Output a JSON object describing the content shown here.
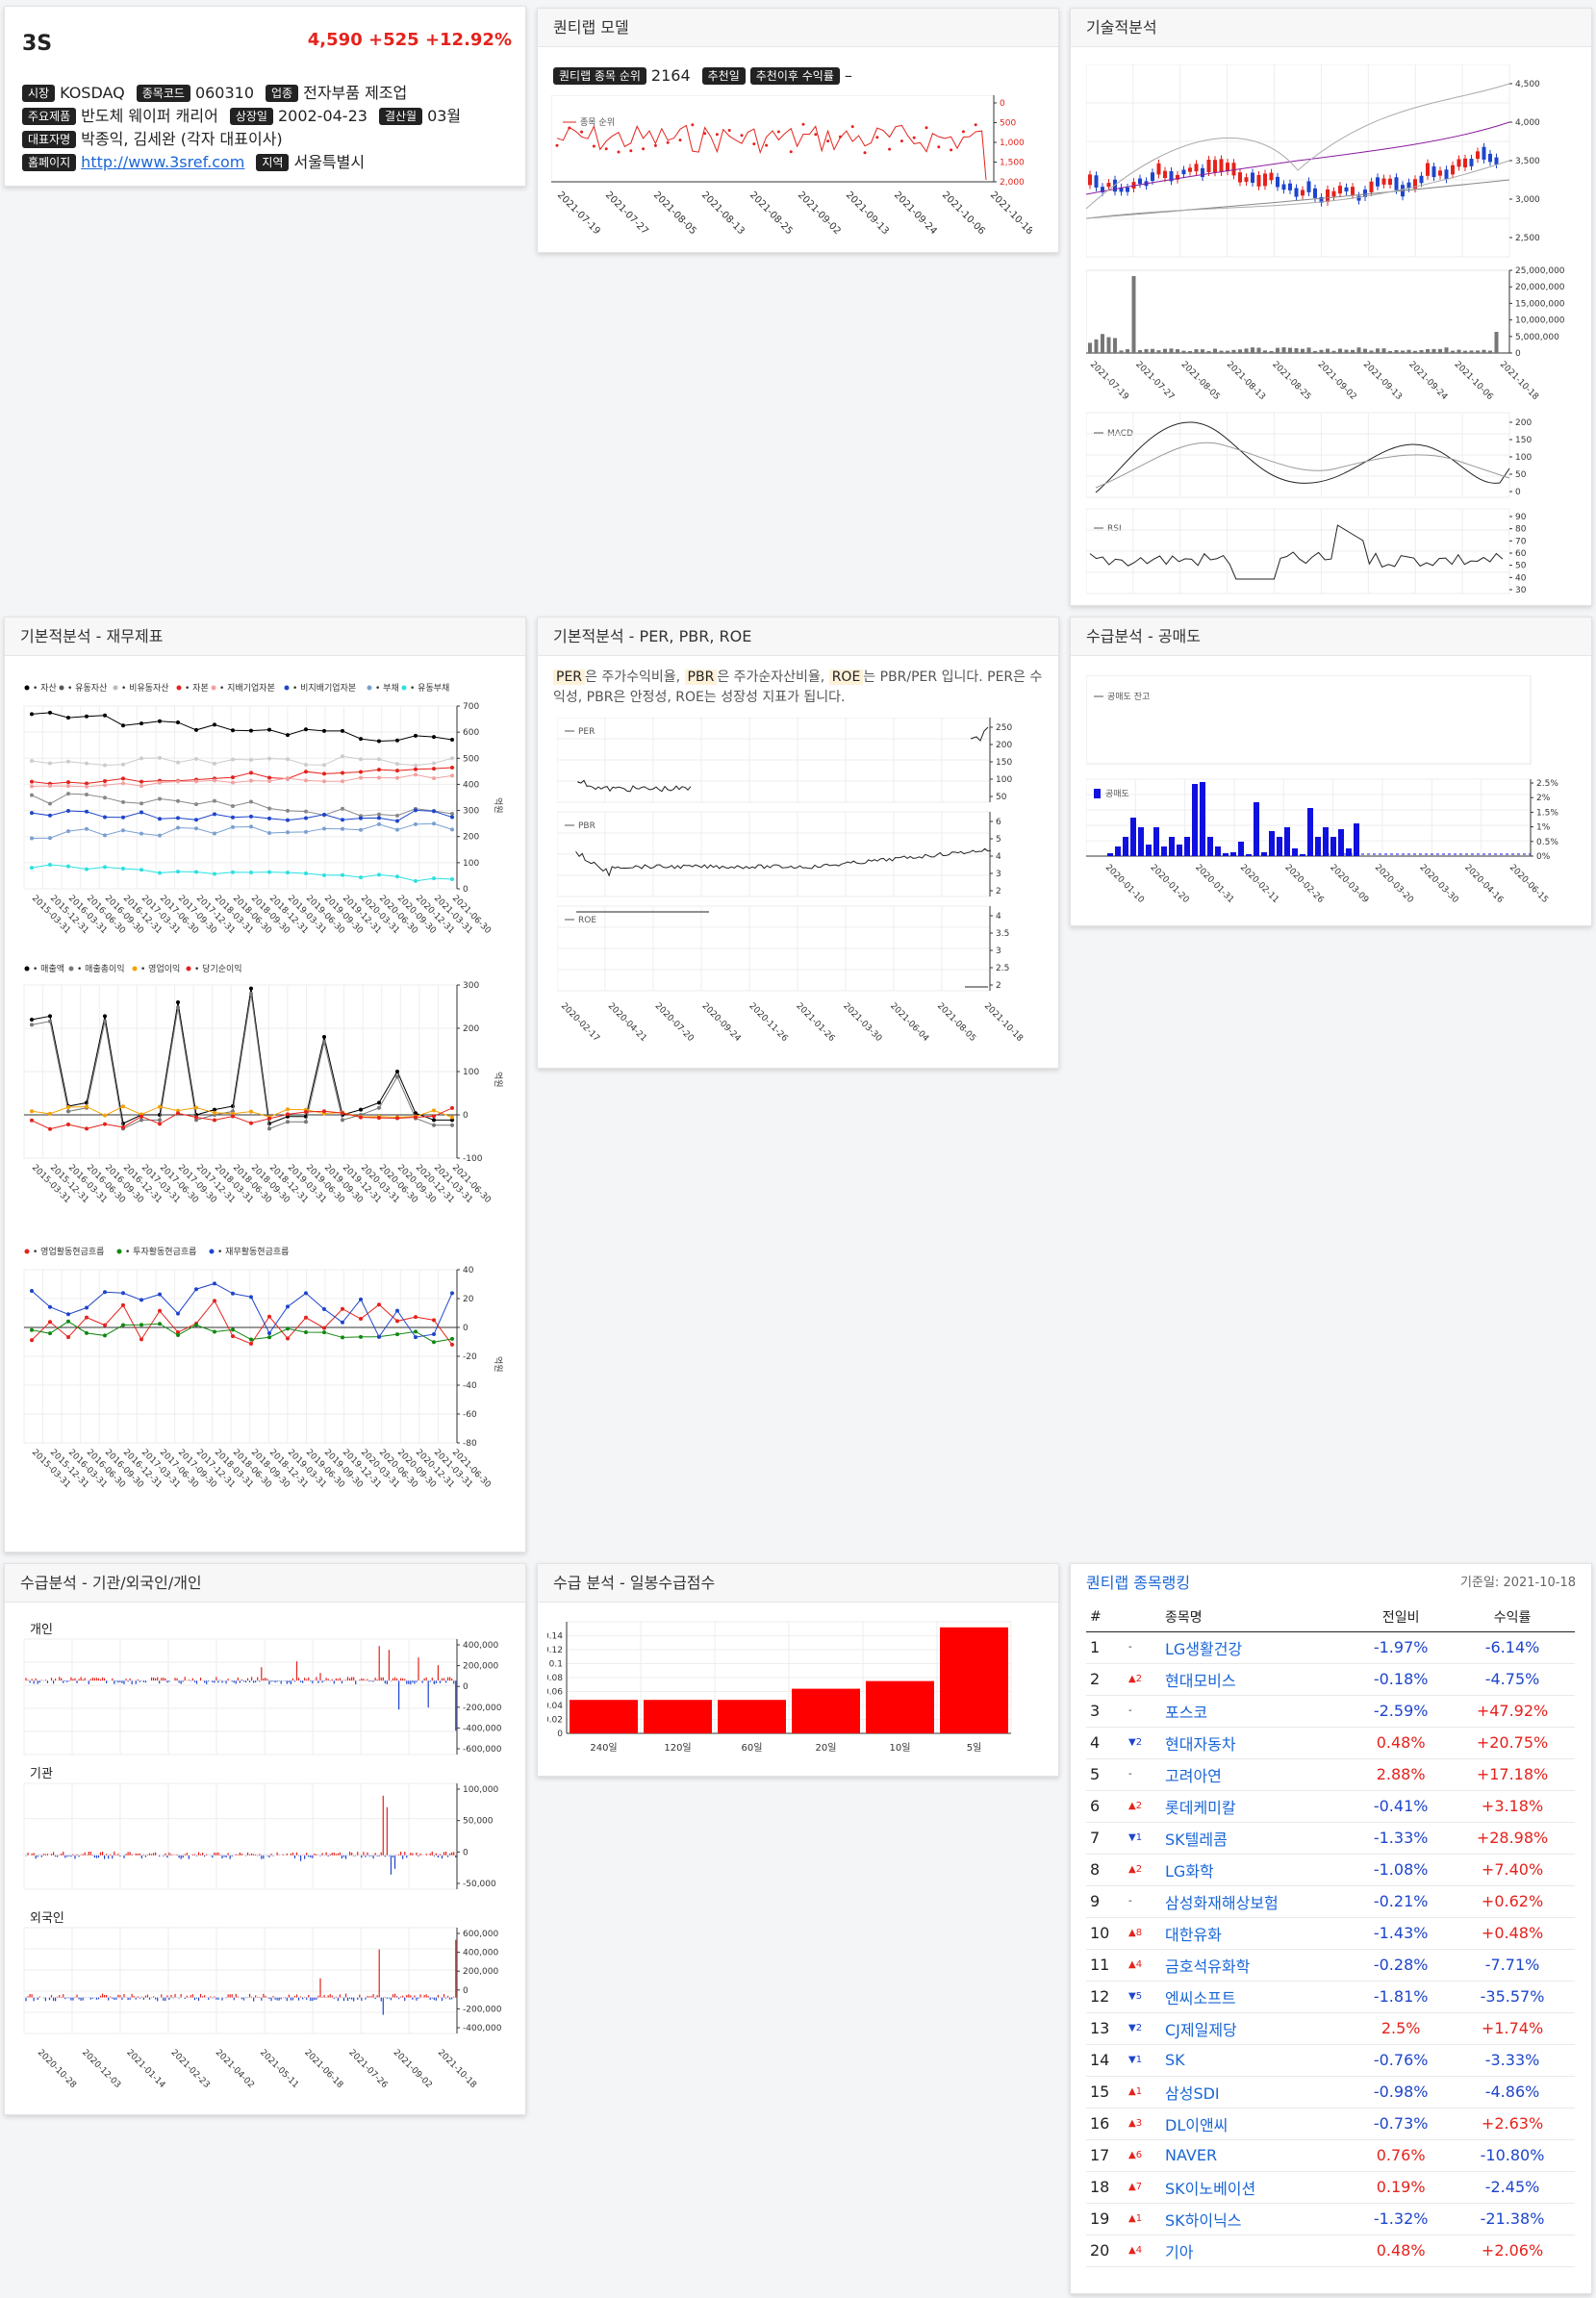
{
  "stock": {
    "name": "3S",
    "price": "4,590",
    "change": "+525",
    "pct": "+12.92%",
    "market_label": "시장",
    "market": "KOSDAQ",
    "code_label": "종목코드",
    "code": "060310",
    "industry_label": "업종",
    "industry": "전자부품 제조업",
    "products_label": "주요제품",
    "products": "반도체 웨이퍼 캐리어",
    "listed_label": "상장일",
    "listed": "2002-04-23",
    "fiscal_label": "결산월",
    "fiscal": "03월",
    "ceo_label": "대표자명",
    "ceo": "박종익, 김세완 (각자 대표이사)",
    "home_label": "홈페이지",
    "home": "http://www.3sref.com",
    "region_label": "지역",
    "region": "서울특별시"
  },
  "quantlab": {
    "title": "퀀티랩 모델",
    "rank_label": "퀀티랩 종목 순위",
    "rank": "2164",
    "recdate_label": "추천일",
    "return_label": "추천이후 수익률",
    "return_value": "–",
    "legend": "종목 순위",
    "y_ticks": [
      "0",
      "500",
      "1,000",
      "1,500",
      "2,000"
    ],
    "x_ticks": [
      "2021-07-19",
      "2021-07-27",
      "2021-08-05",
      "2021-08-13",
      "2021-08-25",
      "2021-09-02",
      "2021-09-13",
      "2021-09-24",
      "2021-10-06",
      "2021-10-18"
    ]
  },
  "technical": {
    "title": "기술적분석",
    "price_ticks": [
      "4,500",
      "4,000",
      "3,500",
      "3,000",
      "2,500"
    ],
    "volume_ticks": [
      "25,000,000",
      "20,000,000",
      "15,000,000",
      "10,000,000",
      "5,000,000",
      "0"
    ],
    "x_ticks": [
      "2021-07-19",
      "2021-07-27",
      "2021-08-05",
      "2021-08-13",
      "2021-08-25",
      "2021-09-02",
      "2021-09-13",
      "2021-09-24",
      "2021-10-06",
      "2021-10-18"
    ],
    "macd_legend": "MACD",
    "macd_ticks": [
      "200",
      "150",
      "100",
      "50",
      "0"
    ],
    "rsi_legend": "RSI",
    "rsi_ticks": [
      "90",
      "80",
      "70",
      "60",
      "50",
      "40",
      "30"
    ]
  },
  "fundamental": {
    "title": "기본적분석 - 재무제표",
    "unit": "억원",
    "chart1_legend": [
      "자산",
      "유동자산",
      "비유동자산",
      "자본",
      "지배기업자본",
      "비지배기업자본",
      "부채",
      "유동부채"
    ],
    "chart1_yticks": [
      "700",
      "600",
      "500",
      "400",
      "300",
      "200",
      "100",
      "0"
    ],
    "chart2_legend": [
      "매출액",
      "매출총이익",
      "영업이익",
      "당기순이익"
    ],
    "chart2_yticks": [
      "300",
      "200",
      "100",
      "0",
      "-100"
    ],
    "chart3_legend": [
      "영업활동현금흐름",
      "투자활동현금흐름",
      "재무활동현금흐름"
    ],
    "chart3_yticks": [
      "40",
      "20",
      "0",
      "-20",
      "-40",
      "-60",
      "-80"
    ],
    "quarters": [
      "2015-03-31",
      "2015-12-31",
      "2016-03-31",
      "2016-06-30",
      "2016-09-30",
      "2016-12-31",
      "2017-03-31",
      "2017-06-30",
      "2017-09-30",
      "2017-12-31",
      "2018-03-31",
      "2018-06-30",
      "2018-09-30",
      "2018-12-31",
      "2019-03-31",
      "2019-06-30",
      "2019-09-30",
      "2019-12-31",
      "2020-03-31",
      "2020-06-30",
      "2020-09-30",
      "2020-12-31",
      "2021-03-31",
      "2021-06-30"
    ]
  },
  "valuation": {
    "title": "기본적분석 - PER, PBR, ROE",
    "per": "PER",
    "pbr": "PBR",
    "roe": "ROE",
    "d1": "은 주가수익비율, ",
    "d2": "은 주가순자산비율, ",
    "d3": "는 PBR/PER 입니다. PER은 수익성, PBR은 안정성, ROE는 성장성 지표가 됩니다.",
    "per_ticks": [
      "250",
      "200",
      "150",
      "100",
      "50"
    ],
    "pbr_ticks": [
      "6",
      "5",
      "4",
      "3",
      "2"
    ],
    "roe_ticks": [
      "4",
      "3.5",
      "3",
      "2.5",
      "2"
    ],
    "x_ticks": [
      "2020-02-17",
      "2020-04-21",
      "2020-07-20",
      "2020-09-24",
      "2020-11-26",
      "2021-01-26",
      "2021-03-30",
      "2021-06-04",
      "2021-08-05",
      "2021-10-18"
    ]
  },
  "short": {
    "title": "수급분석 - 공매도",
    "balance_legend": "공매도 잔고",
    "volume_legend": "공매도",
    "y_ticks": [
      "2.5%",
      "2%",
      "1.5%",
      "1%",
      "0.5%",
      "0%"
    ],
    "x_ticks": [
      "2020-01-10",
      "2020-01-20",
      "2020-01-31",
      "2020-02-11",
      "2020-02-26",
      "2020-03-09",
      "2020-03-20",
      "2020-03-30",
      "2020-04-16",
      "2020-06-15"
    ]
  },
  "investor": {
    "title": "수급분석 - 기관/외국인/개인",
    "individual": "개인",
    "individual_ticks": [
      "400,000",
      "200,000",
      "0",
      "-200,000",
      "-400,000",
      "-600,000"
    ],
    "institution": "기관",
    "institution_ticks": [
      "100,000",
      "50,000",
      "0",
      "-50,000"
    ],
    "foreign": "외국인",
    "foreign_ticks": [
      "600,000",
      "400,000",
      "200,000",
      "0",
      "-200,000",
      "-400,000"
    ],
    "x_ticks": [
      "2020-10-28",
      "2020-12-03",
      "2021-01-14",
      "2021-02-23",
      "2021-04-02",
      "2021-05-11",
      "2021-06-18",
      "2021-07-26",
      "2021-09-02",
      "2021-10-18"
    ]
  },
  "supply_score": {
    "title": "수급 분석 - 일봉수급점수",
    "y_ticks": [
      "0.14",
      "0.12",
      "0.1",
      "0.08",
      "0.06",
      "0.04",
      "0.02",
      "0"
    ]
  },
  "chart_data": {
    "type": "bar",
    "categories": [
      "240일",
      "120일",
      "60일",
      "20일",
      "10일",
      "5일"
    ],
    "values": [
      0.048,
      0.048,
      0.048,
      0.064,
      0.075,
      0.152
    ],
    "ylim": [
      0,
      0.16
    ],
    "color": "#ff0000"
  },
  "ranking": {
    "title": "퀀티랩 종목랭킹",
    "base_date": "기준일: 2021-10-18",
    "headers": [
      "#",
      "종목명",
      "전일비",
      "수익률"
    ],
    "rows": [
      {
        "n": "1",
        "ch": "-",
        "dir": "none",
        "name": "LG생활건강",
        "day": "-1.97%",
        "ret": "-6.14%"
      },
      {
        "n": "2",
        "ch": "▲2",
        "dir": "up",
        "name": "현대모비스",
        "day": "-0.18%",
        "ret": "-4.75%"
      },
      {
        "n": "3",
        "ch": "-",
        "dir": "none",
        "name": "포스코",
        "day": "-2.59%",
        "ret": "+47.92%"
      },
      {
        "n": "4",
        "ch": "▼2",
        "dir": "dn",
        "name": "현대자동차",
        "day": "0.48%",
        "ret": "+20.75%"
      },
      {
        "n": "5",
        "ch": "-",
        "dir": "none",
        "name": "고려아연",
        "day": "2.88%",
        "ret": "+17.18%"
      },
      {
        "n": "6",
        "ch": "▲2",
        "dir": "up",
        "name": "롯데케미칼",
        "day": "-0.41%",
        "ret": "+3.18%"
      },
      {
        "n": "7",
        "ch": "▼1",
        "dir": "dn",
        "name": "SK텔레콤",
        "day": "-1.33%",
        "ret": "+28.98%"
      },
      {
        "n": "8",
        "ch": "▲2",
        "dir": "up",
        "name": "LG화학",
        "day": "-1.08%",
        "ret": "+7.40%"
      },
      {
        "n": "9",
        "ch": "-",
        "dir": "none",
        "name": "삼성화재해상보험",
        "day": "-0.21%",
        "ret": "+0.62%"
      },
      {
        "n": "10",
        "ch": "▲8",
        "dir": "up",
        "name": "대한유화",
        "day": "-1.43%",
        "ret": "+0.48%"
      },
      {
        "n": "11",
        "ch": "▲4",
        "dir": "up",
        "name": "금호석유화학",
        "day": "-0.28%",
        "ret": "-7.71%"
      },
      {
        "n": "12",
        "ch": "▼5",
        "dir": "dn",
        "name": "엔씨소프트",
        "day": "-1.81%",
        "ret": "-35.57%"
      },
      {
        "n": "13",
        "ch": "▼2",
        "dir": "dn",
        "name": "CJ제일제당",
        "day": "2.5%",
        "ret": "+1.74%"
      },
      {
        "n": "14",
        "ch": "▼1",
        "dir": "dn",
        "name": "SK",
        "day": "-0.76%",
        "ret": "-3.33%"
      },
      {
        "n": "15",
        "ch": "▲1",
        "dir": "up",
        "name": "삼성SDI",
        "day": "-0.98%",
        "ret": "-4.86%"
      },
      {
        "n": "16",
        "ch": "▲3",
        "dir": "up",
        "name": "DL이앤씨",
        "day": "-0.73%",
        "ret": "+2.63%"
      },
      {
        "n": "17",
        "ch": "▲6",
        "dir": "up",
        "name": "NAVER",
        "day": "0.76%",
        "ret": "-10.80%"
      },
      {
        "n": "18",
        "ch": "▲7",
        "dir": "up",
        "name": "SK이노베이션",
        "day": "0.19%",
        "ret": "-2.45%"
      },
      {
        "n": "19",
        "ch": "▲1",
        "dir": "up",
        "name": "SK하이닉스",
        "day": "-1.32%",
        "ret": "-21.38%"
      },
      {
        "n": "20",
        "ch": "▲4",
        "dir": "up",
        "name": "기아",
        "day": "0.48%",
        "ret": "+2.06%"
      }
    ]
  },
  "colors": {
    "up": "#e5221c",
    "down": "#1e45cc",
    "link": "#1a66d6"
  }
}
